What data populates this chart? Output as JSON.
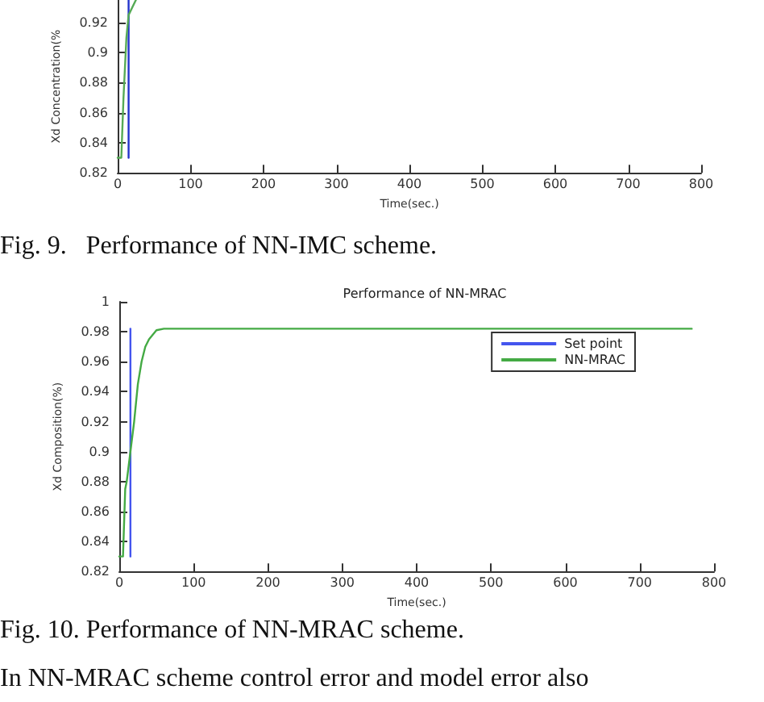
{
  "chart_data": [
    {
      "type": "line",
      "ylabel": "Xd Concentration(%",
      "xlabel": "Time(sec.)",
      "annotations": [
        "Fig. 9.   Performance of NN-IMC scheme."
      ],
      "xlim": [
        0,
        800
      ],
      "xticks": [
        0,
        100,
        200,
        300,
        400,
        500,
        600,
        700,
        800
      ],
      "ylim": [
        0.82,
        0.935
      ],
      "yticks": [
        0.82,
        0.84,
        0.86,
        0.88,
        0.9,
        0.92
      ],
      "grid": false,
      "legend": false,
      "marker": "none",
      "line_style": "solid",
      "series": [
        {
          "color": "#2233cc",
          "x": [
            15,
            15
          ],
          "values": [
            0.83,
            0.935
          ]
        },
        {
          "color": "#55aa55",
          "x": [
            0,
            5,
            8,
            12,
            15,
            20,
            25
          ],
          "values": [
            0.83,
            0.83,
            0.87,
            0.91,
            0.925,
            0.93,
            0.935
          ]
        }
      ]
    },
    {
      "type": "line",
      "title": "Performance of NN-MRAC",
      "ylabel": "Xd Composition(%)",
      "xlabel": "Time(sec.)",
      "annotations": [
        "Fig. 10. Performance of NN-MRAC scheme.",
        "In NN-MRAC scheme control error and model error also"
      ],
      "xlim": [
        0,
        800
      ],
      "xticks": [
        0,
        100,
        200,
        300,
        400,
        500,
        600,
        700,
        800
      ],
      "ylim": [
        0.82,
        1
      ],
      "yticks": [
        0.82,
        0.84,
        0.86,
        0.88,
        0.9,
        0.92,
        0.94,
        0.96,
        0.98,
        1
      ],
      "grid": false,
      "legend": "top right",
      "marker": "none",
      "line_style": "solid",
      "series": [
        {
          "name": "Set point",
          "color": "#4455ee",
          "x": [
            15,
            15
          ],
          "values": [
            0.83,
            0.982
          ]
        },
        {
          "name": "NN-MRAC",
          "color": "#44aa44",
          "x": [
            0,
            5,
            8,
            10,
            15,
            20,
            25,
            30,
            35,
            40,
            50,
            60,
            100,
            770
          ],
          "values": [
            0.83,
            0.83,
            0.875,
            0.88,
            0.9,
            0.92,
            0.945,
            0.96,
            0.97,
            0.975,
            0.981,
            0.982,
            0.982,
            0.982
          ]
        }
      ]
    }
  ]
}
